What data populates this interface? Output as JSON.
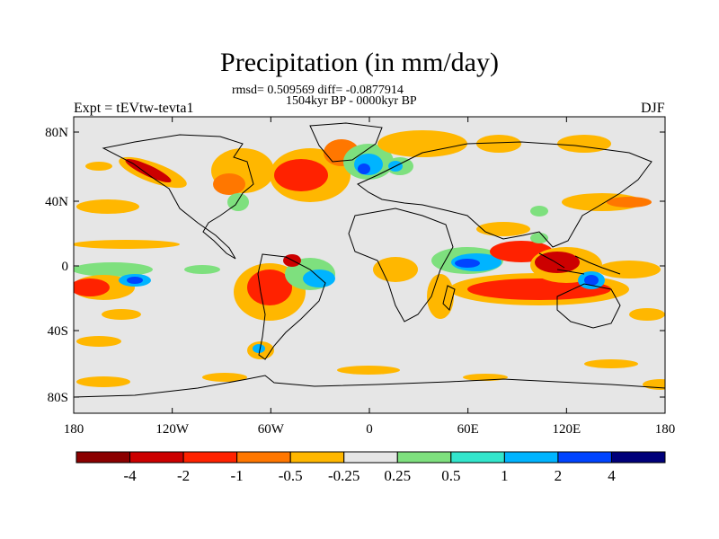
{
  "title": "Precipitation (in mm/day)",
  "stats": "rmsd= 0.509569 diff= -0.0877914",
  "period": "1504kyr BP - 0000kyr BP",
  "experiment": "Expt = tEVtw-tevta1",
  "season": "DJF",
  "map": {
    "background_color": "#e6e6e6",
    "lon_ticks": [
      "180",
      "120W",
      "60W",
      "0",
      "60E",
      "120E",
      "180"
    ],
    "lat_ticks": [
      "80N",
      "40N",
      "0",
      "40S",
      "80S"
    ]
  },
  "colorbar": {
    "colors": [
      "#8b0000",
      "#cc0000",
      "#ff2200",
      "#ff7700",
      "#ffb700",
      "#e6e6e6",
      "#7ee07e",
      "#33e6cc",
      "#00b4ff",
      "#0044ff",
      "#00007a"
    ],
    "labels": [
      "-4",
      "-2",
      "-1",
      "-0.5",
      "-0.25",
      "0.25",
      "0.5",
      "1",
      "2",
      "4"
    ]
  }
}
